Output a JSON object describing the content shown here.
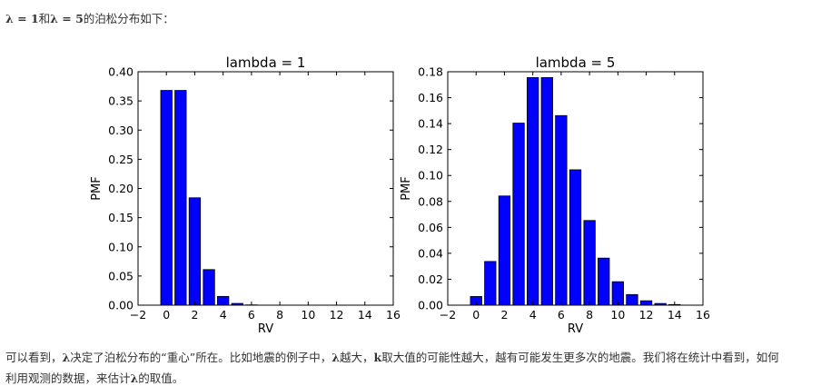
{
  "intro": {
    "lam1": "λ",
    "eq1": " = 1",
    "and": "和",
    "lam2": "λ",
    "eq2": " = 5",
    "rest": "的泊松分布如下："
  },
  "body": {
    "p1a": "可以看到，",
    "p1lam": "λ",
    "p1b": "决定了泊松分布的“重心”所在。比如地震的例子中，",
    "p1lam2": "λ",
    "p1c": "越大，",
    "p1k": "k",
    "p1d": "取大值的可能性越大，越有可能发生更多次的地震。我们将在统计中看到，如何",
    "p2a": "利用观测的数据，来估计",
    "p2lam": "λ",
    "p2b": "的取值。"
  },
  "colors": {
    "bar": "#0000ff",
    "edge": "#000000"
  },
  "chart_data": [
    {
      "type": "bar",
      "title": "lambda = 1",
      "xlabel": "RV",
      "ylabel": "PMF",
      "xlim": [
        -2,
        16
      ],
      "ylim": [
        0,
        0.4
      ],
      "xticks": [
        -2,
        0,
        2,
        4,
        6,
        8,
        10,
        12,
        14,
        16
      ],
      "xtick_labels": [
        "−2",
        "0",
        "2",
        "4",
        "6",
        "8",
        "10",
        "12",
        "14",
        "16"
      ],
      "yticks": [
        0,
        0.05,
        0.1,
        0.15,
        0.2,
        0.25,
        0.3,
        0.35,
        0.4
      ],
      "ytick_labels": [
        "0.00",
        "0.05",
        "0.10",
        "0.15",
        "0.20",
        "0.25",
        "0.30",
        "0.35",
        "0.40"
      ],
      "x": [
        0,
        1,
        2,
        3,
        4,
        5,
        6,
        7,
        8,
        9,
        10,
        11,
        12,
        13,
        14
      ],
      "values": [
        0.368,
        0.368,
        0.184,
        0.061,
        0.015,
        0.003,
        0.0005,
        0.0001,
        0,
        0,
        0,
        0,
        0,
        0,
        0
      ]
    },
    {
      "type": "bar",
      "title": "lambda = 5",
      "xlabel": "RV",
      "ylabel": "PMF",
      "xlim": [
        -2,
        16
      ],
      "ylim": [
        0,
        0.18
      ],
      "xticks": [
        -2,
        0,
        2,
        4,
        6,
        8,
        10,
        12,
        14,
        16
      ],
      "xtick_labels": [
        "−2",
        "0",
        "2",
        "4",
        "6",
        "8",
        "10",
        "12",
        "14",
        "16"
      ],
      "yticks": [
        0,
        0.02,
        0.04,
        0.06,
        0.08,
        0.1,
        0.12,
        0.14,
        0.16,
        0.18
      ],
      "ytick_labels": [
        "0.00",
        "0.02",
        "0.04",
        "0.06",
        "0.08",
        "0.10",
        "0.12",
        "0.14",
        "0.16",
        "0.18"
      ],
      "x": [
        0,
        1,
        2,
        3,
        4,
        5,
        6,
        7,
        8,
        9,
        10,
        11,
        12,
        13,
        14
      ],
      "values": [
        0.0067,
        0.0337,
        0.0842,
        0.1404,
        0.1755,
        0.1755,
        0.1462,
        0.1044,
        0.0653,
        0.0363,
        0.0181,
        0.0082,
        0.0034,
        0.0013,
        0.0005
      ]
    }
  ]
}
